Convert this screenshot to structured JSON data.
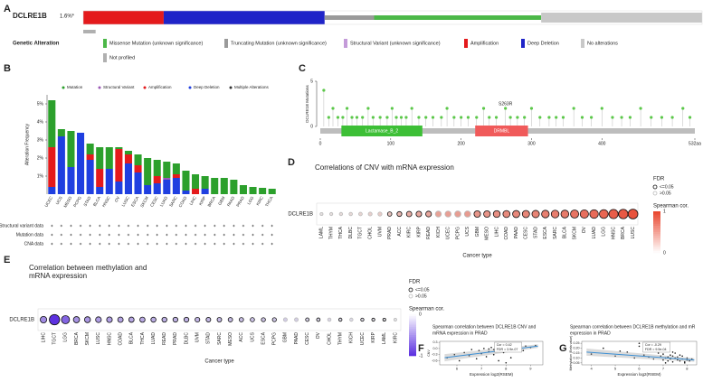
{
  "chart_data": [
    {
      "type": "oncoprint",
      "label": "A",
      "title": "DCLRE1B",
      "altered_label": "1.6%*",
      "legend_title": "Genetic Alteration",
      "legend": [
        {
          "name": "Missense Mutation (unknown significance)",
          "color": "#4cb848",
          "value": 27
        },
        {
          "name": "Truncating Mutation (unknown significance)",
          "color": "#9a9a9a",
          "value": 8
        },
        {
          "name": "Structural Variant (unknown significance)",
          "color": "#c49bd9",
          "value": 0
        },
        {
          "name": "Amplification",
          "color": "#e41a1c",
          "value": 13
        },
        {
          "name": "Deep Deletion",
          "color": "#1f24c8",
          "value": 26
        },
        {
          "name": "No alterations",
          "color": "#c8c8c8",
          "value": 26
        },
        {
          "name": "Not profiled",
          "color": "#b0b0b0",
          "value": 2
        }
      ]
    },
    {
      "type": "stacked_bar",
      "label": "B",
      "ylabel": "Alteration Frequency",
      "categories": [
        "UCEC",
        "UCS",
        "MESO",
        "PCPG",
        "STAD",
        "BLCA",
        "HNSC",
        "OV",
        "LUSC",
        "ESCA",
        "SKCM",
        "CESC",
        "LUAD",
        "SARC",
        "COAD",
        "LIHC",
        "KIRP",
        "BRCA",
        "GBM",
        "PAAD",
        "PRAD",
        "LGG",
        "KIRC",
        "THCA"
      ],
      "series": [
        {
          "name": "Mutation",
          "color": "#2ca02c",
          "values": [
            2.6,
            0.4,
            2.0,
            0,
            0.6,
            1.2,
            1.2,
            0.1,
            0.2,
            0.6,
            1.5,
            0.9,
            0.9,
            0.6,
            1.1,
            0.8,
            0.7,
            0.9,
            0.9,
            0.8,
            0.5,
            0.4,
            0.35,
            0.3
          ]
        },
        {
          "name": "Structural Variant",
          "color": "#9b59b6",
          "values": [
            0,
            0,
            0,
            0,
            0,
            0,
            0,
            0,
            0,
            0,
            0,
            0,
            0.1,
            0,
            0,
            0,
            0,
            0,
            0,
            0,
            0,
            0,
            0,
            0
          ]
        },
        {
          "name": "Amplification",
          "color": "#e41a1c",
          "values": [
            2.2,
            0,
            0,
            0,
            0.3,
            1.0,
            0,
            1.8,
            0.5,
            0.4,
            0,
            0.4,
            0,
            0.2,
            0,
            0.3,
            0,
            0,
            0,
            0,
            0,
            0,
            0,
            0
          ]
        },
        {
          "name": "Deep Deletion",
          "color": "#1f3fe0",
          "values": [
            0.4,
            3.2,
            1.5,
            3.4,
            1.9,
            0.4,
            1.4,
            0.7,
            1.7,
            1.2,
            0.5,
            0.6,
            0.8,
            0.9,
            0.2,
            0,
            0.3,
            0,
            0,
            0,
            0,
            0,
            0,
            0
          ]
        },
        {
          "name": "Multiple Alterations",
          "color": "#333333",
          "values": [
            0,
            0,
            0,
            0,
            0,
            0,
            0,
            0,
            0,
            0,
            0,
            0,
            0,
            0,
            0,
            0,
            0,
            0,
            0,
            0,
            0,
            0,
            0,
            0
          ]
        }
      ],
      "ylim": [
        0,
        5.5
      ],
      "yticks": [
        {
          "value": 1,
          "label": "1%"
        },
        {
          "value": 2,
          "label": "2%"
        },
        {
          "value": 3,
          "label": "3%"
        },
        {
          "value": 4,
          "label": "4%"
        },
        {
          "value": 5,
          "label": "5%"
        }
      ],
      "row_labels": [
        "Structural variant data",
        "Mutation data",
        "CNA data"
      ]
    },
    {
      "type": "lollipop",
      "label": "C",
      "ylabel": "DCLRE1B Mutations",
      "x": [
        5,
        12,
        18,
        25,
        32,
        38,
        45,
        52,
        60,
        68,
        75,
        85,
        95,
        102,
        108,
        115,
        122,
        130,
        140,
        150,
        160,
        172,
        180,
        190,
        200,
        210,
        222,
        232,
        240,
        250,
        263,
        270,
        280,
        290,
        300,
        312,
        325,
        335,
        345,
        360,
        372,
        385,
        400,
        415,
        428,
        440,
        455,
        470,
        485,
        500,
        515,
        525
      ],
      "values": [
        4,
        1,
        2,
        1,
        1,
        2,
        1,
        1,
        1,
        2,
        1,
        1,
        1,
        2,
        1,
        1,
        1,
        2,
        1,
        1,
        1,
        1,
        2,
        1,
        1,
        1,
        1,
        2,
        1,
        1,
        2,
        1,
        1,
        1,
        2,
        1,
        1,
        1,
        1,
        2,
        1,
        1,
        2,
        1,
        1,
        1,
        2,
        1,
        1,
        1,
        2,
        1
      ],
      "color": "#5cc84a",
      "xlim": [
        0,
        532
      ],
      "xticks": [
        0,
        100,
        200,
        300,
        400,
        {
          "value": 532,
          "label": "532aa"
        }
      ],
      "ylim": [
        0,
        5
      ],
      "yticks": [
        0,
        5
      ],
      "domains": [
        {
          "name": "Lactamase_B_2",
          "start": 30,
          "end": 145,
          "color": "#3dbf36"
        },
        {
          "name": "DRMBL",
          "start": 220,
          "end": 295,
          "color": "#f05a5a"
        }
      ],
      "annotation": {
        "text": "S263R",
        "x": 263
      }
    },
    {
      "type": "dotplot",
      "label": "D",
      "title": "Correlations of CNV with mRNA expression",
      "ylabel": "DCLRE1B",
      "xlabel": "Cancer type",
      "categories": [
        "LAML",
        "THYM",
        "THCA",
        "DLBC",
        "TGCT",
        "CHOL",
        "UVM",
        "PRAD",
        "ACC",
        "KIRC",
        "KIRP",
        "READ",
        "KICH",
        "UCEC",
        "PCPG",
        "UCS",
        "GBM",
        "MESO",
        "LIHC",
        "COAD",
        "PAAD",
        "CESC",
        "STAD",
        "ESCA",
        "SARC",
        "BLCA",
        "SKCM",
        "OV",
        "LUAD",
        "LGG",
        "HNSC",
        "BRCA",
        "LUSC"
      ],
      "values": [
        0.02,
        0.03,
        0.05,
        0.06,
        0.08,
        0.1,
        0.12,
        0.15,
        0.2,
        0.25,
        0.27,
        0.28,
        0.3,
        0.31,
        0.32,
        0.33,
        0.35,
        0.36,
        0.38,
        0.4,
        0.41,
        0.42,
        0.43,
        0.45,
        0.46,
        0.47,
        0.5,
        0.52,
        0.54,
        0.56,
        0.6,
        0.62,
        0.65
      ],
      "fdr_significant": [
        false,
        false,
        false,
        false,
        false,
        false,
        false,
        true,
        true,
        true,
        true,
        true,
        false,
        false,
        false,
        false,
        true,
        true,
        true,
        true,
        true,
        true,
        true,
        true,
        true,
        true,
        true,
        true,
        true,
        true,
        true,
        true,
        true
      ],
      "color": "#e8432b",
      "legend_title": "FDR",
      "legend_items": [
        "<=0.05",
        ">0.05"
      ],
      "colorbar_title": "Spearman cor.",
      "colorbar_ticks": [
        0,
        1
      ]
    },
    {
      "type": "dotplot",
      "label": "E",
      "title": [
        "Correlation between methylation and",
        "mRNA expression"
      ],
      "ylabel": "DCLRE1B",
      "xlabel": "Cancer type",
      "categories": [
        "LIHC",
        "TGCT",
        "LGG",
        "BRCA",
        "SKCM",
        "LUSC",
        "HNSC",
        "COAD",
        "BLCA",
        "THCA",
        "LUAD",
        "READ",
        "PRAD",
        "DLBC",
        "UVM",
        "STAD",
        "SARC",
        "MESO",
        "ACC",
        "UCS",
        "ESCA",
        "PCPG",
        "GBM",
        "PAAD",
        "CESC",
        "OV",
        "CHOL",
        "THYM",
        "KICH",
        "UCEC",
        "KIRP",
        "LAML",
        "KIRC"
      ],
      "values": [
        -0.35,
        -0.7,
        -0.5,
        -0.32,
        -0.3,
        -0.28,
        -0.27,
        -0.25,
        -0.24,
        -0.23,
        -0.22,
        -0.21,
        -0.2,
        -0.2,
        -0.19,
        -0.18,
        -0.17,
        -0.16,
        -0.15,
        -0.14,
        -0.13,
        -0.12,
        -0.1,
        -0.09,
        -0.08,
        -0.07,
        -0.06,
        -0.05,
        -0.05,
        -0.04,
        -0.03,
        -0.02,
        -0.01
      ],
      "fdr_significant": [
        true,
        true,
        true,
        true,
        true,
        true,
        true,
        true,
        true,
        true,
        true,
        true,
        true,
        true,
        true,
        true,
        true,
        true,
        true,
        true,
        true,
        true,
        false,
        false,
        true,
        true,
        false,
        true,
        false,
        true,
        true,
        true,
        false
      ],
      "color": "#5a2de0",
      "legend_title": "FDR",
      "legend_items": [
        "<=0.05",
        ">0.05"
      ],
      "colorbar_title": "Spearman cor.",
      "colorbar_ticks": [
        -1,
        0
      ]
    },
    {
      "type": "scatter",
      "label": "F",
      "title": [
        "Spearman correlation between DCLRE1B CNV and",
        "mRNA expression in PRAD"
      ],
      "xlabel": "Expression log2(RSEM)",
      "ylabel": "CNV",
      "annotation": [
        "Cor = 0.42",
        "FDR = 3.9e-07"
      ],
      "x": [
        5.6,
        5.9,
        6.1,
        6.3,
        6.5,
        6.6,
        6.8,
        6.9,
        7.0,
        7.1,
        7.2,
        7.3,
        7.3,
        7.4,
        7.5,
        7.5,
        7.6,
        7.6,
        7.7,
        7.7,
        7.8,
        7.8,
        7.9,
        7.9,
        8.0,
        8.0,
        8.1,
        8.1,
        8.2,
        8.2,
        8.3,
        8.3,
        8.4,
        8.5,
        8.6,
        8.7,
        8.8,
        9.0,
        9.2,
        8.0
      ],
      "values": [
        -0.45,
        -0.3,
        -0.6,
        -0.2,
        -0.35,
        -0.05,
        -0.5,
        -0.1,
        -0.25,
        0.0,
        -0.4,
        -0.02,
        -0.15,
        0.05,
        -0.05,
        -0.3,
        0.02,
        -0.1,
        0.0,
        -0.6,
        0.04,
        -0.08,
        0.01,
        -0.2,
        0.05,
        -0.02,
        0.03,
        -0.12,
        0.06,
        -0.45,
        0.02,
        -0.05,
        0.1,
        0.0,
        0.08,
        -0.1,
        0.12,
        0.05,
        0.15,
        -0.7
      ],
      "fit": {
        "x": [
          5.5,
          9.3
        ],
        "y": [
          -0.45,
          0.12
        ]
      },
      "xlim": [
        5.3,
        9.5
      ],
      "xticks": [
        6,
        7,
        8,
        9
      ],
      "ylim": [
        -0.8,
        0.35
      ],
      "yticks": [
        -0.6,
        -0.3,
        {
          "value": 0,
          "label": "0.0"
        },
        0.3
      ]
    },
    {
      "type": "scatter",
      "label": "G",
      "title": [
        "Spearman correlation between DCLRE1B methylation and mR",
        "expression in PRAD"
      ],
      "xlabel": "Expression log2(RSEM)",
      "ylabel": "Methylation (Beta value)",
      "annotation": [
        "Cor = -0.29",
        "FDR = 9.5e-04"
      ],
      "x": [
        4.0,
        4.5,
        5.0,
        5.5,
        5.8,
        6.0,
        6.2,
        6.4,
        6.5,
        6.6,
        6.8,
        6.9,
        7.0,
        7.0,
        7.1,
        7.2,
        7.2,
        7.3,
        7.3,
        7.4,
        7.4,
        7.5,
        7.5,
        7.6,
        7.6,
        7.7,
        7.8,
        7.8,
        7.9,
        8.0,
        8.0,
        8.1,
        8.2,
        6.0,
        6.7,
        7.1,
        5.2,
        7.7,
        7.9,
        7.4
      ],
      "values": [
        0.14,
        0.2,
        0.12,
        0.16,
        0.1,
        0.22,
        0.13,
        0.11,
        0.18,
        0.09,
        0.15,
        0.12,
        0.08,
        0.14,
        0.1,
        0.11,
        0.07,
        0.13,
        0.09,
        0.12,
        0.06,
        0.1,
        0.15,
        0.08,
        0.11,
        0.07,
        0.09,
        0.12,
        0.06,
        0.08,
        0.1,
        0.07,
        0.09,
        0.25,
        0.19,
        0.05,
        0.17,
        0.13,
        0.05,
        0.16
      ],
      "fit": {
        "x": [
          3.8,
          8.3
        ],
        "y": [
          0.16,
          0.08
        ]
      },
      "xlim": [
        3.6,
        8.4
      ],
      "xticks": [
        4,
        5,
        6,
        7,
        8
      ],
      "ylim": [
        0.03,
        0.27
      ],
      "yticks": [
        0.05,
        {
          "value": 0.1,
          "label": "0.10"
        },
        0.15,
        {
          "value": 0.2,
          "label": "0.20"
        },
        0.25
      ]
    }
  ]
}
